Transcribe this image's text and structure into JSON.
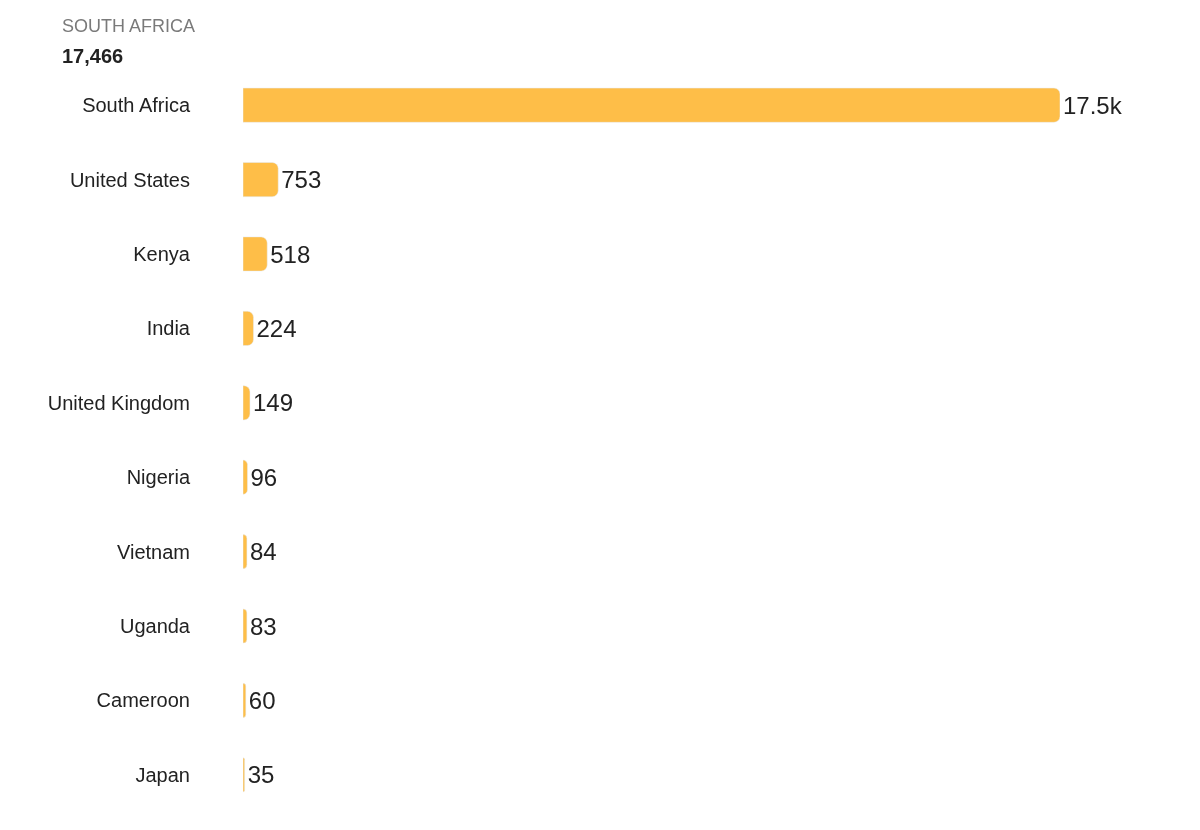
{
  "chart_data": {
    "type": "bar",
    "orientation": "horizontal",
    "categories": [
      "South Africa",
      "United States",
      "Kenya",
      "India",
      "United Kingdom",
      "Nigeria",
      "Vietnam",
      "Uganda",
      "Cameroon",
      "Japan"
    ],
    "values": [
      17466,
      753,
      518,
      224,
      149,
      96,
      84,
      83,
      60,
      35
    ],
    "value_labels": [
      "17.5k",
      "753",
      "518",
      "224",
      "149",
      "96",
      "84",
      "83",
      "60",
      "35"
    ],
    "color": "#febe48",
    "xlim": [
      0,
      17466
    ],
    "tick_labels": "y",
    "annotations": [
      "SOUTH AFRICA",
      "17,466"
    ]
  }
}
